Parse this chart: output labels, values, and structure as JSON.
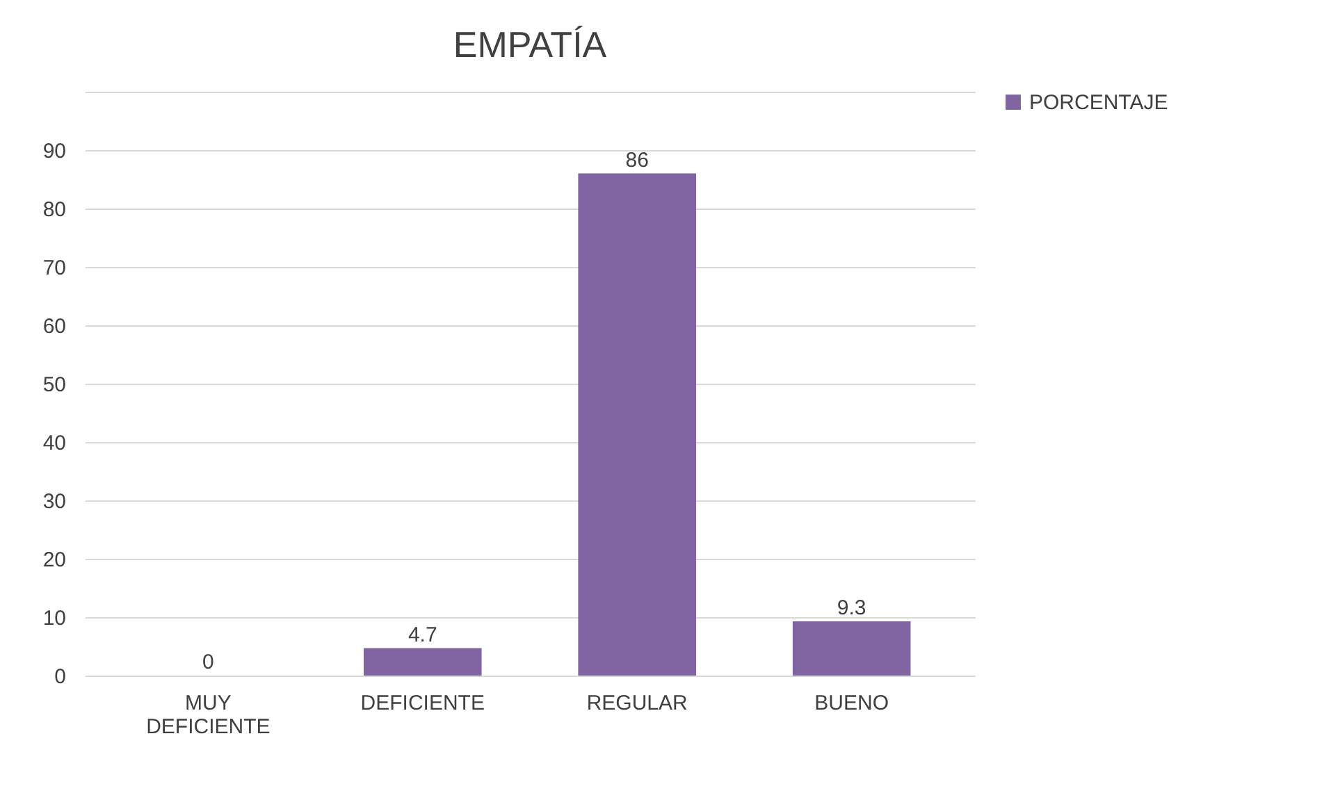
{
  "chart_data": {
    "type": "bar",
    "title": "EMPATÍA",
    "categories": [
      "MUY DEFICIENTE",
      "DEFICIENTE",
      "REGULAR",
      "BUENO"
    ],
    "series": [
      {
        "name": "PORCENTAJE",
        "color": "#8064a2",
        "values": [
          0,
          4.7,
          86,
          9.3
        ]
      }
    ],
    "ylim": [
      0,
      100
    ],
    "yticks": [
      0,
      10,
      20,
      30,
      40,
      50,
      60,
      70,
      80,
      90,
      {
        "value": 100,
        "label": null
      }
    ],
    "grid": "y",
    "legend": "right",
    "data_labels": true
  }
}
